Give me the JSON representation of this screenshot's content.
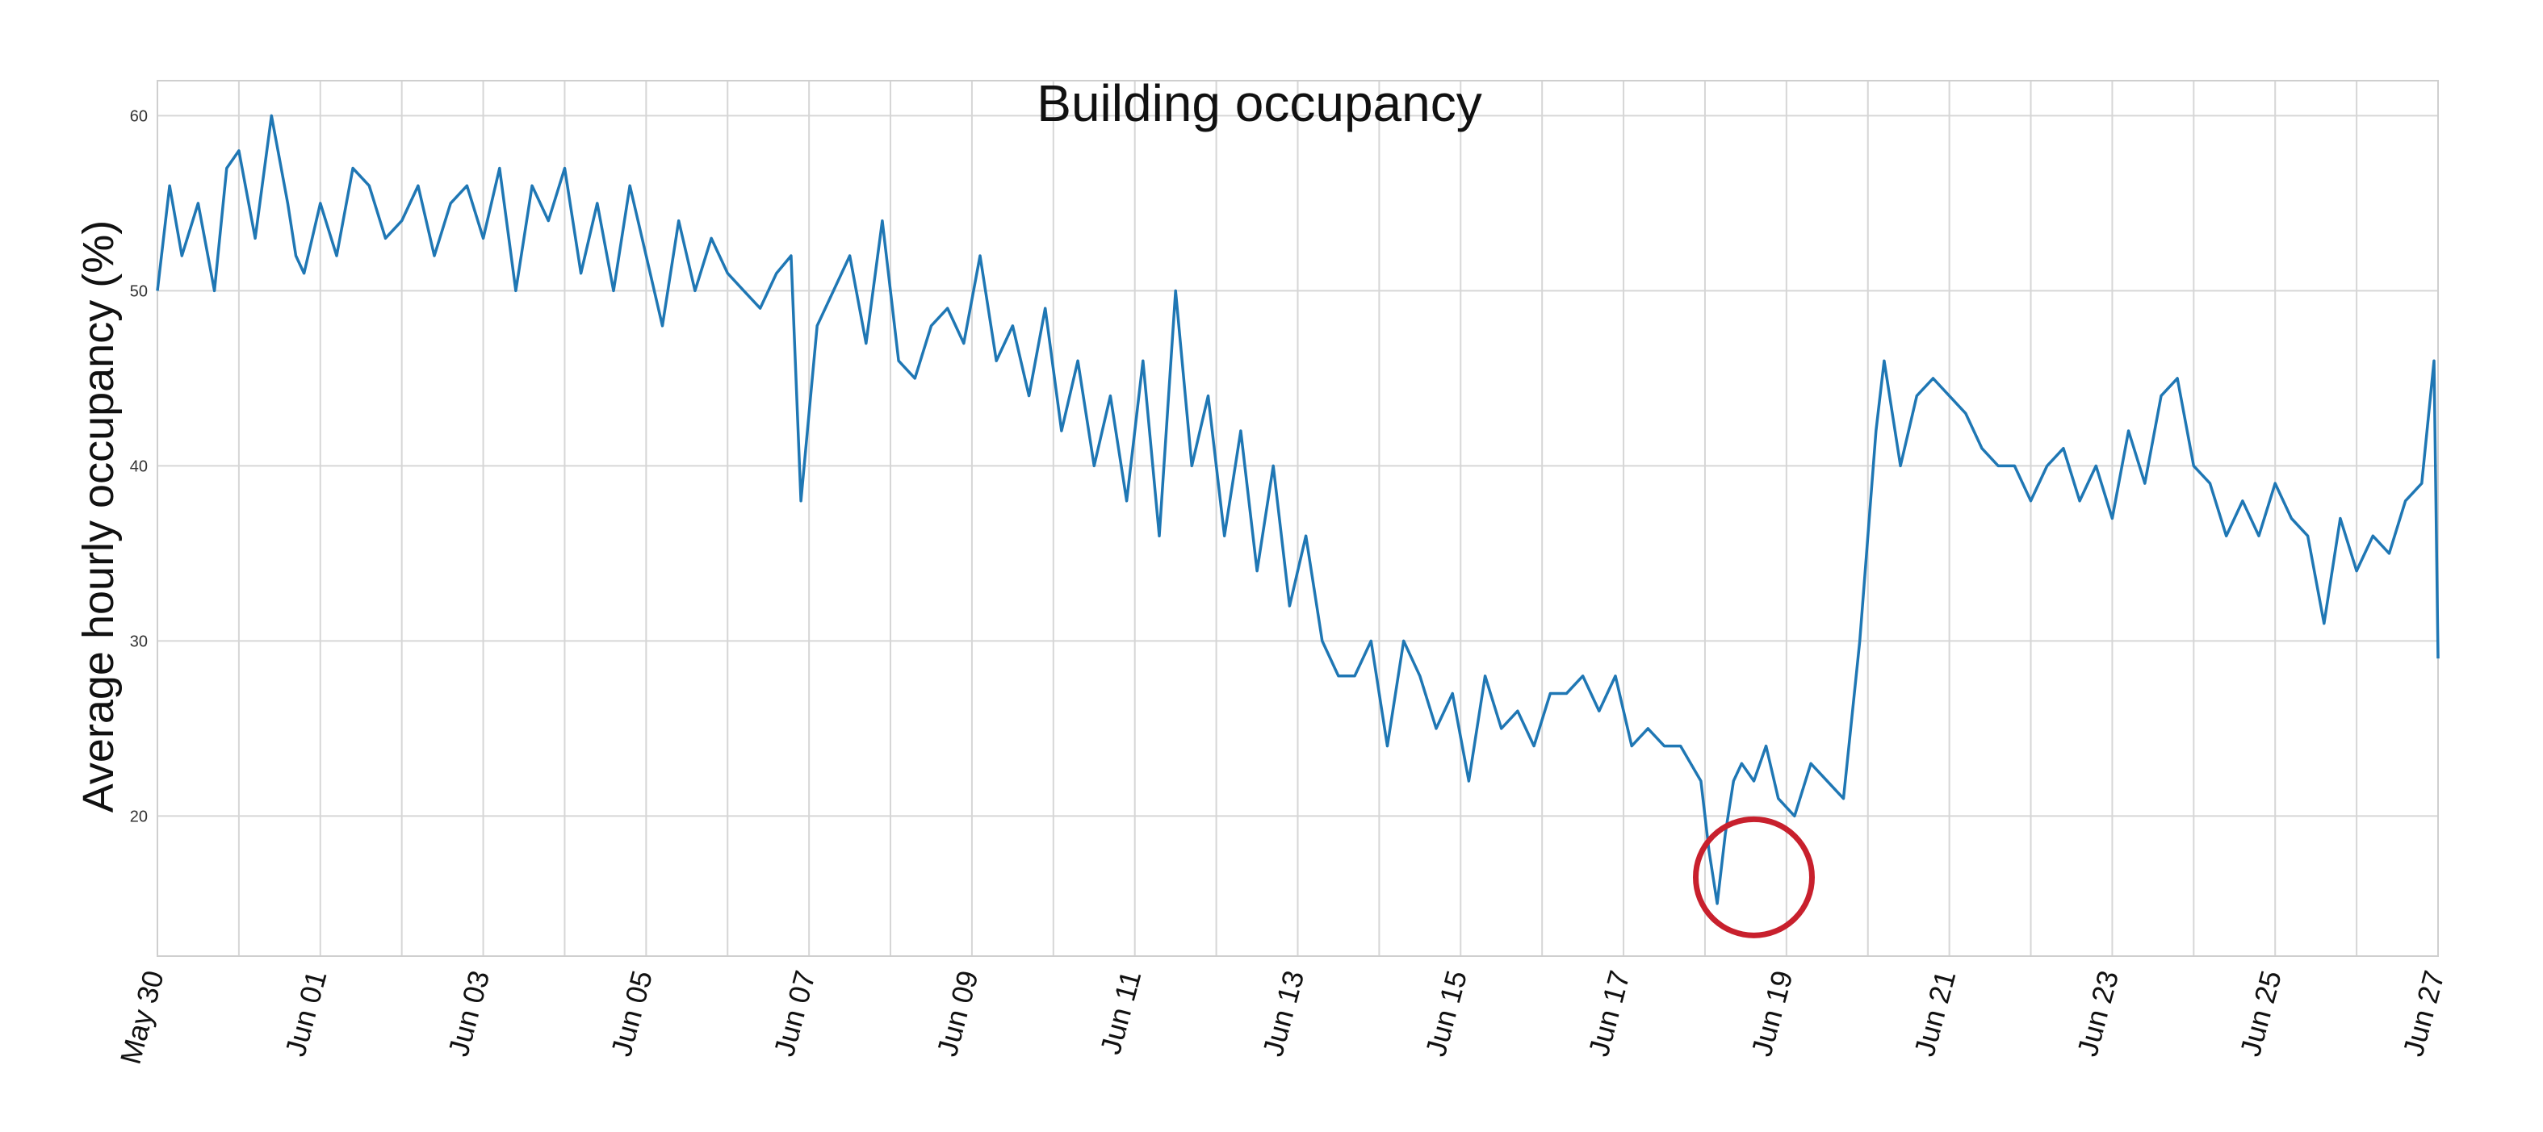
{
  "chart_data": {
    "type": "line",
    "title": "Building occupancy",
    "xlabel": "",
    "ylabel": "Average hourly occupancy (%)",
    "x_start": "May 30",
    "x_end": "Jun 27",
    "ylim": [
      12,
      62
    ],
    "yticks": [
      20,
      30,
      40,
      50,
      60
    ],
    "xticks": [
      {
        "day": 0,
        "label": "May 30"
      },
      {
        "day": 2,
        "label": "Jun 01"
      },
      {
        "day": 4,
        "label": "Jun 03"
      },
      {
        "day": 6,
        "label": "Jun 05"
      },
      {
        "day": 8,
        "label": "Jun 07"
      },
      {
        "day": 10,
        "label": "Jun 09"
      },
      {
        "day": 12,
        "label": "Jun 11"
      },
      {
        "day": 14,
        "label": "Jun 13"
      },
      {
        "day": 16,
        "label": "Jun 15"
      },
      {
        "day": 18,
        "label": "Jun 17"
      },
      {
        "day": 20,
        "label": "Jun 19"
      },
      {
        "day": 22,
        "label": "Jun 21"
      },
      {
        "day": 24,
        "label": "Jun 23"
      },
      {
        "day": 26,
        "label": "Jun 25"
      },
      {
        "day": 28,
        "label": "Jun 27"
      }
    ],
    "grid": true,
    "line_color": "#1f77b4",
    "series": [
      {
        "x_days": [
          0,
          0.15,
          0.3,
          0.5,
          0.7,
          0.85,
          1,
          1.2,
          1.4,
          1.6,
          1.7,
          1.8,
          2,
          2.2,
          2.4,
          2.6,
          2.8,
          3,
          3.2,
          3.4,
          3.6,
          3.8,
          4,
          4.2,
          4.4,
          4.6,
          4.8,
          5,
          5.2,
          5.4,
          5.6,
          5.8,
          6,
          6.2,
          6.4,
          6.6,
          6.8,
          7,
          7.2,
          7.4,
          7.6,
          7.78,
          7.9,
          8.1,
          8.3,
          8.5,
          8.7,
          8.9,
          9.1,
          9.3,
          9.5,
          9.7,
          9.9,
          10.1,
          10.3,
          10.5,
          10.7,
          10.9,
          11.1,
          11.3,
          11.5,
          11.7,
          11.9,
          12.1,
          12.3,
          12.5,
          12.7,
          12.9,
          13.1,
          13.3,
          13.5,
          13.7,
          13.9,
          14.1,
          14.3,
          14.5,
          14.7,
          14.9,
          15.1,
          15.3,
          15.5,
          15.7,
          15.9,
          16.1,
          16.3,
          16.5,
          16.7,
          16.9,
          17.1,
          17.3,
          17.5,
          17.7,
          17.9,
          18.1,
          18.3,
          18.5,
          18.7,
          18.95,
          19.05,
          19.15,
          19.25,
          19.35,
          19.45,
          19.6,
          19.75,
          19.9,
          20.1,
          20.3,
          20.5,
          20.7,
          20.9,
          21.1,
          21.2,
          21.4,
          21.6,
          21.8,
          22,
          22.2,
          22.4,
          22.6,
          22.8,
          23,
          23.2,
          23.4,
          23.6,
          23.8,
          24,
          24.2,
          24.4,
          24.6,
          24.8,
          25,
          25.2,
          25.4,
          25.6,
          25.8,
          26,
          26.2,
          26.4,
          26.6,
          26.8,
          27,
          27.2,
          27.4,
          27.6,
          27.8,
          27.95,
          28
        ],
        "values": [
          50,
          56,
          52,
          55,
          50,
          57,
          58,
          53,
          60,
          55,
          52,
          51,
          55,
          52,
          57,
          56,
          53,
          54,
          56,
          52,
          55,
          56,
          53,
          57,
          50,
          56,
          54,
          57,
          51,
          55,
          50,
          56,
          52,
          48,
          54,
          50,
          53,
          51,
          50,
          49,
          51,
          52,
          38,
          48,
          50,
          52,
          47,
          54,
          46,
          45,
          48,
          49,
          47,
          52,
          46,
          48,
          44,
          49,
          42,
          46,
          40,
          44,
          38,
          46,
          36,
          50,
          40,
          44,
          36,
          42,
          34,
          40,
          32,
          36,
          30,
          28,
          28,
          30,
          24,
          30,
          28,
          25,
          27,
          22,
          28,
          25,
          26,
          24,
          27,
          27,
          28,
          26,
          28,
          24,
          25,
          24,
          24,
          22,
          18,
          15,
          19,
          22,
          23,
          22,
          24,
          21,
          20,
          23,
          22,
          21,
          30,
          42,
          46,
          40,
          44,
          45,
          44,
          43,
          41,
          40,
          40,
          38,
          40,
          41,
          38,
          40,
          37,
          42,
          39,
          44,
          45,
          40,
          39,
          36,
          38,
          36,
          39,
          37,
          36,
          31,
          37,
          34,
          36,
          35,
          38,
          39,
          46,
          29
        ]
      }
    ],
    "annotation": {
      "shape": "circle",
      "color": "#c8202d",
      "center_x_day": 19.6,
      "center_y": 16.5
    }
  }
}
